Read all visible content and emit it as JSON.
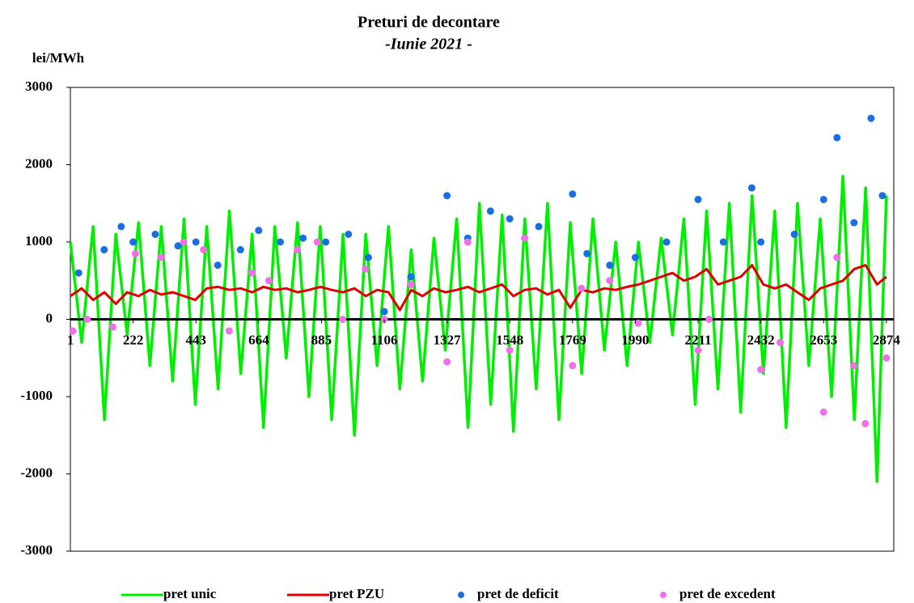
{
  "chart_data": {
    "type": "line",
    "title": "Preturi de decontare",
    "subtitle": "-Iunie 2021 -",
    "y_label": "lei/MWh",
    "xlim": [
      1,
      2900
    ],
    "xticks": [
      1,
      222,
      443,
      664,
      885,
      1106,
      1327,
      1548,
      1769,
      1990,
      2211,
      2432,
      2653,
      2874
    ],
    "ylim": [
      -3000,
      3000
    ],
    "yticks": [
      -3000,
      -2000,
      -1000,
      0,
      1000,
      2000,
      3000
    ],
    "legend": "bottom",
    "x": [
      1,
      41,
      81,
      121,
      161,
      201,
      241,
      281,
      321,
      361,
      401,
      441,
      481,
      521,
      561,
      601,
      641,
      681,
      721,
      761,
      801,
      841,
      881,
      921,
      961,
      1001,
      1041,
      1081,
      1121,
      1161,
      1201,
      1241,
      1281,
      1321,
      1361,
      1401,
      1441,
      1481,
      1521,
      1561,
      1601,
      1641,
      1681,
      1721,
      1761,
      1801,
      1841,
      1881,
      1921,
      1961,
      2001,
      2041,
      2081,
      2121,
      2161,
      2201,
      2241,
      2281,
      2321,
      2361,
      2401,
      2441,
      2481,
      2521,
      2561,
      2601,
      2641,
      2681,
      2721,
      2761,
      2801,
      2841,
      2874
    ],
    "series": [
      {
        "name": "pret unic",
        "type": "line",
        "color": "#00ee00",
        "values": [
          1000,
          -300,
          1200,
          -1300,
          1100,
          -200,
          1250,
          -600,
          1200,
          -800,
          1300,
          -1100,
          1200,
          -900,
          1400,
          -700,
          1100,
          -1400,
          1200,
          -500,
          1250,
          -1000,
          1200,
          -1300,
          1100,
          -1500,
          1100,
          -600,
          1200,
          -900,
          900,
          -800,
          1050,
          -400,
          1300,
          -1400,
          1500,
          -1100,
          1350,
          -1450,
          1300,
          -900,
          1500,
          -1300,
          1250,
          -700,
          1300,
          -400,
          1000,
          -600,
          1000,
          -300,
          1050,
          -200,
          1300,
          -1100,
          1400,
          -900,
          1500,
          -1200,
          1600,
          -700,
          1400,
          -1400,
          1500,
          -600,
          1300,
          -1000,
          1850,
          -1300,
          1700,
          -2100,
          1600
        ]
      },
      {
        "name": "pret PZU",
        "type": "line",
        "color": "#e00000",
        "values": [
          300,
          400,
          250,
          350,
          200,
          350,
          300,
          380,
          320,
          350,
          300,
          250,
          400,
          420,
          380,
          400,
          350,
          420,
          380,
          400,
          350,
          380,
          420,
          380,
          350,
          400,
          300,
          380,
          350,
          120,
          380,
          300,
          400,
          350,
          380,
          420,
          350,
          400,
          450,
          300,
          380,
          400,
          320,
          380,
          150,
          380,
          350,
          400,
          380,
          420,
          450,
          500,
          550,
          600,
          500,
          550,
          650,
          450,
          500,
          550,
          700,
          450,
          400,
          450,
          350,
          250,
          400,
          450,
          500,
          650,
          700,
          450,
          550
        ]
      },
      {
        "name": "pret de deficit",
        "type": "scatter",
        "color": "#1a6fe0",
        "x": [
          30,
          120,
          180,
          222,
          300,
          380,
          443,
          520,
          600,
          664,
          740,
          820,
          900,
          980,
          1050,
          1106,
          1200,
          1327,
          1400,
          1480,
          1548,
          1650,
          1769,
          1820,
          1900,
          1990,
          2100,
          2211,
          2300,
          2400,
          2432,
          2550,
          2653,
          2700,
          2760,
          2820,
          2860
        ],
        "values": [
          600,
          900,
          1200,
          1000,
          1100,
          950,
          1000,
          700,
          900,
          1150,
          1000,
          1050,
          1000,
          1100,
          800,
          100,
          550,
          1600,
          1050,
          1400,
          1300,
          1200,
          1620,
          850,
          700,
          800,
          1000,
          1550,
          1000,
          1700,
          1000,
          1100,
          1550,
          2350,
          1250,
          2600,
          1600
        ]
      },
      {
        "name": "pret de excedent",
        "type": "scatter",
        "color": "#f070e8",
        "x": [
          10,
          60,
          150,
          230,
          320,
          400,
          470,
          560,
          640,
          700,
          800,
          870,
          960,
          1040,
          1106,
          1200,
          1327,
          1400,
          1548,
          1600,
          1769,
          1800,
          1900,
          2000,
          2211,
          2250,
          2432,
          2500,
          2653,
          2700,
          2760,
          2800,
          2874
        ],
        "values": [
          -150,
          0,
          -100,
          850,
          800,
          1000,
          900,
          -150,
          600,
          500,
          900,
          1000,
          0,
          650,
          0,
          450,
          -550,
          1000,
          -400,
          1050,
          -600,
          400,
          500,
          -50,
          -400,
          0,
          -650,
          -300,
          -1200,
          800,
          -600,
          -1350,
          -500
        ]
      }
    ]
  }
}
